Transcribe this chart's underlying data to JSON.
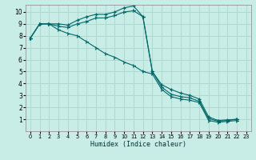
{
  "title": "",
  "xlabel": "Humidex (Indice chaleur)",
  "background_color": "#c8ece6",
  "grid_color": "#aed8d0",
  "line_color": "#006868",
  "xlim": [
    -0.5,
    23.5
  ],
  "ylim": [
    0,
    10.6
  ],
  "xticks": [
    0,
    1,
    2,
    3,
    4,
    5,
    6,
    7,
    8,
    9,
    10,
    11,
    12,
    13,
    14,
    15,
    16,
    17,
    18,
    19,
    20,
    21,
    22,
    23
  ],
  "yticks": [
    1,
    2,
    3,
    4,
    5,
    6,
    7,
    8,
    9,
    10
  ],
  "lines": [
    {
      "x": [
        0,
        1,
        2,
        3,
        4,
        5,
        6,
        7,
        8,
        9,
        10,
        11,
        12,
        13,
        14,
        15,
        16,
        17,
        18,
        19,
        20,
        21,
        22
      ],
      "y": [
        7.8,
        9.0,
        9.0,
        9.0,
        8.9,
        9.3,
        9.6,
        9.8,
        9.8,
        10.0,
        10.35,
        10.5,
        9.6,
        5.0,
        3.9,
        3.5,
        3.2,
        3.0,
        2.7,
        1.2,
        0.9,
        0.95,
        1.0
      ],
      "marker": "+"
    },
    {
      "x": [
        0,
        1,
        2,
        3,
        4,
        5,
        6,
        7,
        8,
        9,
        10,
        11,
        12,
        13,
        14,
        15,
        16,
        17,
        18,
        19,
        20,
        21,
        22
      ],
      "y": [
        7.8,
        9.0,
        9.0,
        8.8,
        8.7,
        9.0,
        9.2,
        9.5,
        9.5,
        9.7,
        10.0,
        10.1,
        9.6,
        5.0,
        3.7,
        3.1,
        2.9,
        2.8,
        2.5,
        1.05,
        0.85,
        0.9,
        1.0
      ],
      "marker": "4"
    },
    {
      "x": [
        0,
        1,
        2,
        3,
        4,
        5,
        6,
        7,
        8,
        9,
        10,
        11,
        12,
        13,
        14,
        15,
        16,
        17,
        18,
        19,
        20,
        21,
        22
      ],
      "y": [
        7.8,
        9.0,
        9.0,
        8.5,
        8.2,
        8.0,
        7.5,
        7.0,
        6.5,
        6.2,
        5.8,
        5.5,
        5.0,
        4.8,
        3.5,
        2.9,
        2.7,
        2.6,
        2.4,
        0.9,
        0.75,
        0.82,
        0.9
      ],
      "marker": "4"
    }
  ]
}
